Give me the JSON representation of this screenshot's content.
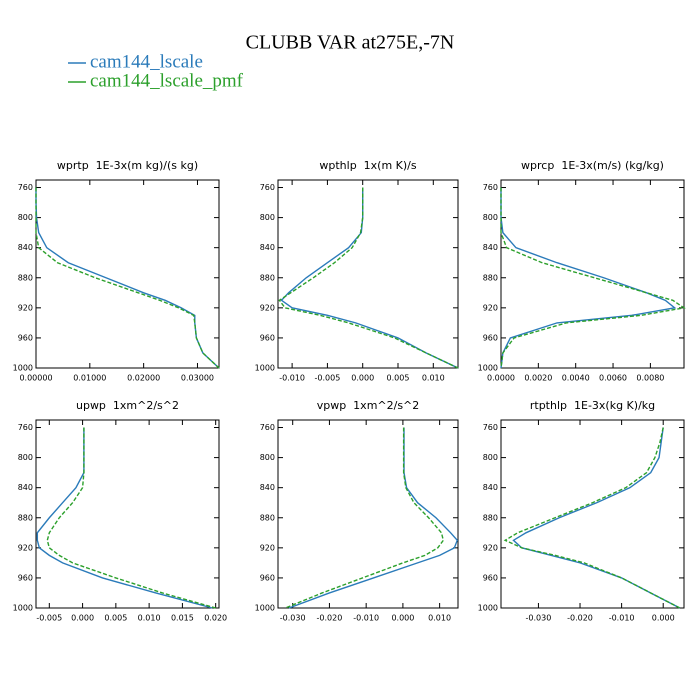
{
  "title": "CLUBB VAR at275E,-7N",
  "legend": [
    {
      "name": "cam144_lscale",
      "color": "#2b7bba"
    },
    {
      "name": "cam144_lscale_pmf",
      "color": "#2ca02c"
    }
  ],
  "chart_data": [
    {
      "type": "line",
      "title": "wprtp  1E-3x(m kg)/(s kg)",
      "y": [
        760,
        780,
        800,
        820,
        840,
        860,
        880,
        900,
        910,
        920,
        930,
        940,
        960,
        980,
        1000
      ],
      "series": [
        {
          "values": [
            0,
            0,
            0.0001,
            0.0005,
            0.002,
            0.006,
            0.013,
            0.02,
            0.024,
            0.027,
            0.0295,
            0.0295,
            0.0298,
            0.031,
            0.034
          ]
        },
        {
          "values": [
            0,
            0,
            0,
            0,
            0.0005,
            0.004,
            0.011,
            0.019,
            0.023,
            0.0265,
            0.0293,
            0.0295,
            0.0298,
            0.031,
            0.034
          ]
        }
      ],
      "xlim": [
        0,
        0.034
      ],
      "xticks": [
        {
          "value": 0,
          "label": "0.00000"
        },
        {
          "value": 0.01,
          "label": "0.01000"
        },
        {
          "value": 0.02,
          "label": "0.02000"
        },
        {
          "value": 0.03,
          "label": "0.03000"
        }
      ],
      "ylim": [
        1000,
        750
      ],
      "yticks": [
        760,
        800,
        840,
        880,
        920,
        960,
        1000
      ]
    },
    {
      "type": "line",
      "title": "wpthlp  1x(m K)/s",
      "y": [
        760,
        780,
        800,
        820,
        840,
        860,
        880,
        900,
        910,
        920,
        930,
        940,
        960,
        980,
        1000
      ],
      "series": [
        {
          "values": [
            0,
            0,
            0,
            -0.0002,
            -0.002,
            -0.005,
            -0.008,
            -0.0105,
            -0.0115,
            -0.01,
            -0.005,
            -0.001,
            0.005,
            0.009,
            0.0135
          ]
        },
        {
          "values": [
            0,
            0,
            0,
            -0.0003,
            -0.0015,
            -0.004,
            -0.007,
            -0.0102,
            -0.0118,
            -0.011,
            -0.006,
            -0.002,
            0.0045,
            0.009,
            0.0135
          ]
        }
      ],
      "xlim": [
        -0.012,
        0.0135
      ],
      "xticks": [
        {
          "value": -0.01,
          "label": "-0.010"
        },
        {
          "value": -0.005,
          "label": "-0.005"
        },
        {
          "value": 0,
          "label": "0.000"
        },
        {
          "value": 0.005,
          "label": "0.005"
        },
        {
          "value": 0.01,
          "label": "0.010"
        }
      ],
      "ylim": [
        1000,
        750
      ],
      "yticks": [
        760,
        800,
        840,
        880,
        920,
        960,
        1000
      ]
    },
    {
      "type": "line",
      "title": "wprcp  1E-3x(m/s) (kg/kg)",
      "y": [
        760,
        780,
        800,
        820,
        840,
        860,
        880,
        900,
        910,
        920,
        930,
        940,
        960,
        980,
        1000
      ],
      "series": [
        {
          "values": [
            0,
            0,
            0,
            0.0001,
            0.0008,
            0.003,
            0.0055,
            0.0078,
            0.0088,
            0.0093,
            0.007,
            0.003,
            0.0005,
            0.0001,
            0
          ]
        },
        {
          "values": [
            0,
            0,
            0,
            0,
            0.0003,
            0.0022,
            0.005,
            0.0078,
            0.0092,
            0.0098,
            0.0075,
            0.0035,
            0.0007,
            0.0001,
            0
          ]
        }
      ],
      "xlim": [
        0,
        0.0098
      ],
      "xticks": [
        {
          "value": 0,
          "label": "0.0000"
        },
        {
          "value": 0.002,
          "label": "0.0020"
        },
        {
          "value": 0.004,
          "label": "0.0040"
        },
        {
          "value": 0.006,
          "label": "0.0060"
        },
        {
          "value": 0.008,
          "label": "0.0080"
        }
      ],
      "ylim": [
        1000,
        750
      ],
      "yticks": [
        760,
        800,
        840,
        880,
        920,
        960,
        1000
      ]
    },
    {
      "type": "line",
      "title": "upwp  1xm^2/s^2",
      "y": [
        760,
        780,
        800,
        820,
        840,
        860,
        880,
        900,
        910,
        920,
        930,
        940,
        960,
        980,
        1000
      ],
      "series": [
        {
          "values": [
            0.0002,
            0.0002,
            0.0002,
            0.0002,
            -0.001,
            -0.003,
            -0.005,
            -0.0068,
            -0.0068,
            -0.0065,
            -0.005,
            -0.003,
            0.003,
            0.011,
            0.0195
          ]
        },
        {
          "values": [
            0.0002,
            0.0002,
            0.0002,
            0.0002,
            0,
            -0.0015,
            -0.0035,
            -0.005,
            -0.0053,
            -0.005,
            -0.0035,
            -0.0015,
            0.005,
            0.012,
            0.02
          ]
        }
      ],
      "xlim": [
        -0.007,
        0.0205
      ],
      "xticks": [
        {
          "value": -0.005,
          "label": "-0.005"
        },
        {
          "value": 0,
          "label": "0.000"
        },
        {
          "value": 0.005,
          "label": "0.005"
        },
        {
          "value": 0.01,
          "label": "0.010"
        },
        {
          "value": 0.015,
          "label": "0.015"
        },
        {
          "value": 0.02,
          "label": "0.020"
        }
      ],
      "ylim": [
        1000,
        750
      ],
      "yticks": [
        760,
        800,
        840,
        880,
        920,
        960,
        1000
      ]
    },
    {
      "type": "line",
      "title": "vpwp  1xm^2/s^2",
      "y": [
        760,
        780,
        800,
        820,
        840,
        860,
        880,
        900,
        910,
        920,
        930,
        940,
        960,
        980,
        1000
      ],
      "series": [
        {
          "values": [
            0.0003,
            0.0003,
            0.0003,
            0.0003,
            0.001,
            0.004,
            0.009,
            0.013,
            0.0148,
            0.014,
            0.01,
            0.004,
            -0.008,
            -0.02,
            -0.031
          ]
        },
        {
          "values": [
            0.0002,
            0.0002,
            0.0002,
            0.0002,
            0.0008,
            0.003,
            0.007,
            0.0105,
            0.011,
            0.0095,
            0.006,
            0,
            -0.011,
            -0.022,
            -0.032
          ]
        }
      ],
      "xlim": [
        -0.034,
        0.015
      ],
      "xticks": [
        {
          "value": -0.03,
          "label": "-0.030"
        },
        {
          "value": -0.02,
          "label": "-0.020"
        },
        {
          "value": -0.01,
          "label": "-0.010"
        },
        {
          "value": 0,
          "label": "0.000"
        },
        {
          "value": 0.01,
          "label": "0.010"
        }
      ],
      "ylim": [
        1000,
        750
      ],
      "yticks": [
        760,
        800,
        840,
        880,
        920,
        960,
        1000
      ]
    },
    {
      "type": "line",
      "title": "rtpthlp  1E-3x(kg K)/kg",
      "y": [
        760,
        780,
        800,
        820,
        840,
        860,
        880,
        900,
        910,
        920,
        930,
        940,
        960,
        980,
        1000
      ],
      "series": [
        {
          "values": [
            0,
            -0.0005,
            -0.001,
            -0.003,
            -0.008,
            -0.016,
            -0.025,
            -0.033,
            -0.036,
            -0.034,
            -0.027,
            -0.02,
            -0.01,
            -0.003,
            0.004
          ]
        },
        {
          "values": [
            0,
            -0.0008,
            -0.002,
            -0.004,
            -0.009,
            -0.017,
            -0.026,
            -0.035,
            -0.038,
            -0.034,
            -0.026,
            -0.019,
            -0.01,
            -0.003,
            0.004
          ]
        }
      ],
      "xlim": [
        -0.039,
        0.005
      ],
      "xticks": [
        {
          "value": -0.03,
          "label": "-0.030"
        },
        {
          "value": -0.02,
          "label": "-0.020"
        },
        {
          "value": -0.01,
          "label": "-0.010"
        },
        {
          "value": 0,
          "label": "0.000"
        }
      ],
      "ylim": [
        1000,
        750
      ],
      "yticks": [
        760,
        800,
        840,
        880,
        920,
        960,
        1000
      ]
    }
  ]
}
